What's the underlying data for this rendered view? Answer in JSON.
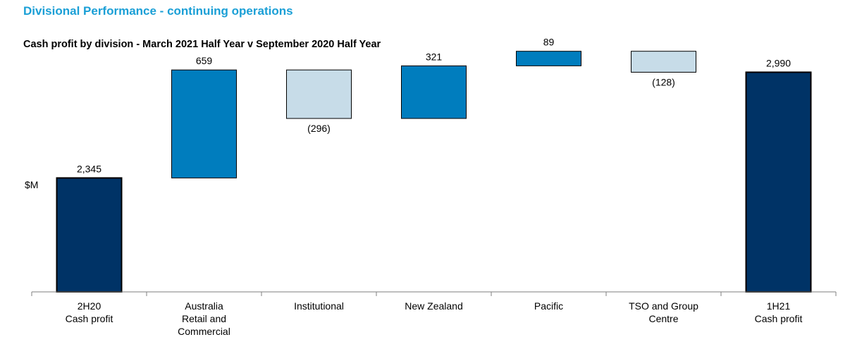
{
  "heading": "Divisional Performance - continuing operations",
  "chart_data": {
    "type": "waterfall",
    "title": "Cash profit by division - March 2021 Half Year v September 2020 Half Year",
    "ylabel": "$M",
    "categories": [
      [
        "2H20",
        "Cash profit"
      ],
      [
        "Australia",
        "Retail and",
        "Commercial"
      ],
      [
        "Institutional"
      ],
      [
        "New Zealand"
      ],
      [
        "Pacific"
      ],
      [
        "TSO and Group",
        "Centre"
      ],
      [
        "1H21",
        "Cash profit"
      ]
    ],
    "values": [
      2345,
      659,
      -296,
      321,
      89,
      -128,
      2990
    ],
    "kinds": [
      "total",
      "delta",
      "delta",
      "delta",
      "delta",
      "delta",
      "total"
    ],
    "value_labels": [
      "2,345",
      "659",
      "(296)",
      "321",
      "89",
      "(128)",
      "2,990"
    ],
    "ylim": [
      1650,
      3300
    ],
    "colors": {
      "total": "#003366",
      "increase": "#007dbe",
      "decrease": "#c7dce8",
      "border": "#000000",
      "axis": "#7f7f7f"
    }
  }
}
